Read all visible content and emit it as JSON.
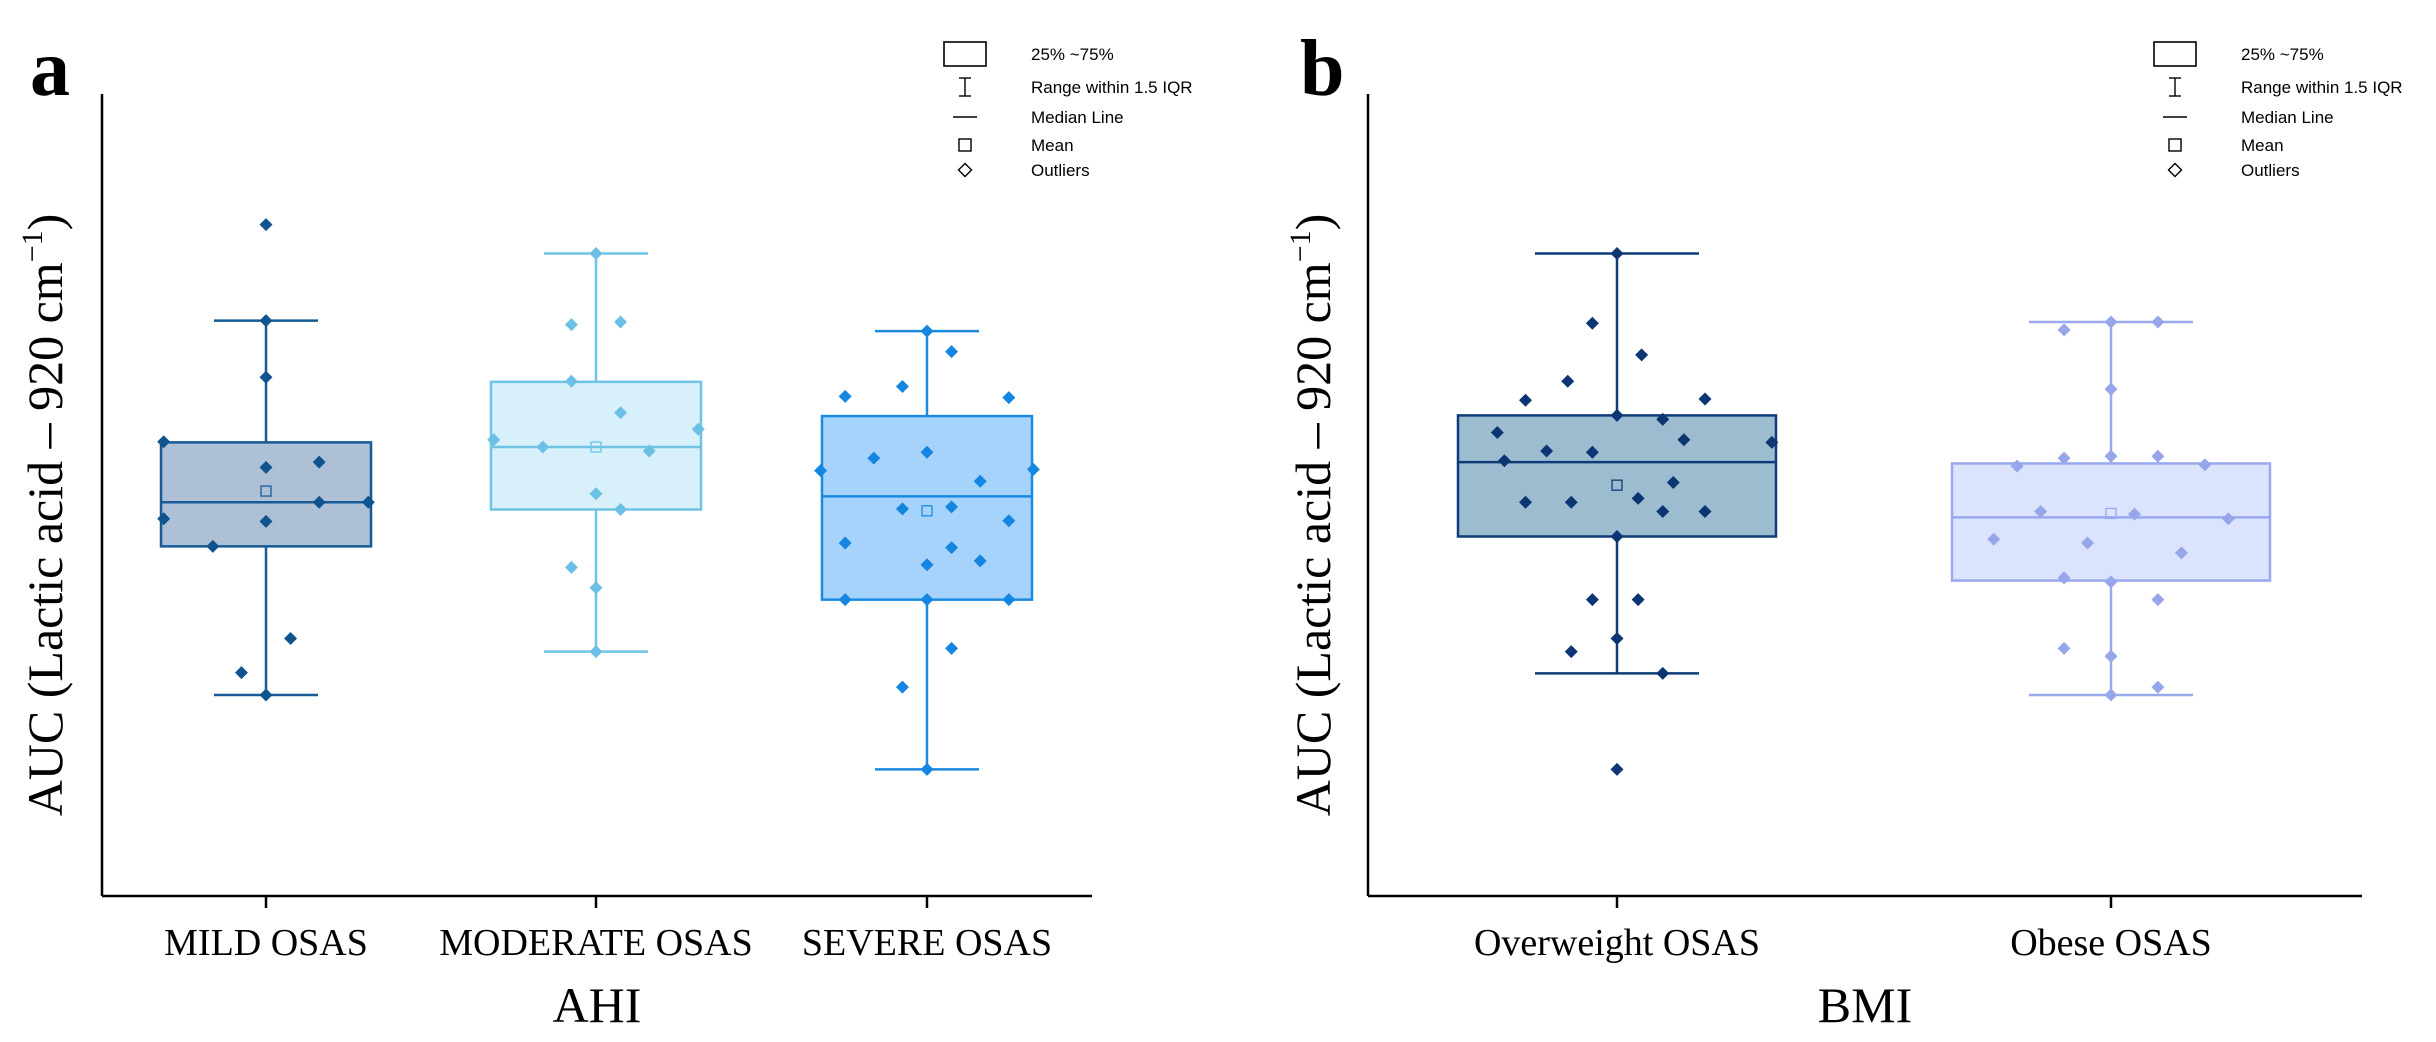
{
  "figure": {
    "panels": [
      {
        "letter": "a",
        "legend": [
          "25% ~75%",
          "Range within 1.5 IQR",
          "Median Line",
          "Mean",
          "Outliers"
        ],
        "chart_data": {
          "type": "box",
          "title": "",
          "xlabel": "AHI",
          "ylabel": "AUC (Lactic acid – 920 cm",
          "ylabel_sup": "−1",
          "ylabel_close": ")",
          "ylim": [
            0,
            100
          ],
          "y_ticks_shown": false,
          "categories": [
            "MILD OSAS",
            "MODERATE OSAS",
            "SEVERE OSAS"
          ],
          "series": [
            {
              "name": "MILD OSAS",
              "box_color": "#aec0d6",
              "line_color": "#165a96",
              "point_color": "#10548f",
              "q1": 42.5,
              "median": 49.2,
              "q3": 58.3,
              "mean": 50.9,
              "whisker_low": 19.9,
              "whisker_high": 76.8,
              "points": [
                {
                  "x": 0,
                  "y": 91.4
                },
                {
                  "x": 0,
                  "y": 76.8
                },
                {
                  "x": 0,
                  "y": 68.2
                },
                {
                  "x": -0.25,
                  "y": 58.4
                },
                {
                  "x": 0,
                  "y": 54.5
                },
                {
                  "x": 0.13,
                  "y": 55.3
                },
                {
                  "x": -0.25,
                  "y": 46.7
                },
                {
                  "x": 0,
                  "y": 46.3
                },
                {
                  "x": 0.13,
                  "y": 49.2
                },
                {
                  "x": 0.25,
                  "y": 49.2
                },
                {
                  "x": -0.13,
                  "y": 42.5
                },
                {
                  "x": 0.06,
                  "y": 28.5
                },
                {
                  "x": -0.06,
                  "y": 23.3
                },
                {
                  "x": 0,
                  "y": 19.9
                }
              ]
            },
            {
              "name": "MODERATE OSAS",
              "box_color": "#d8f0fa",
              "line_color": "#6fc4e6",
              "point_color": "#6cc0e5",
              "q1": 48.1,
              "median": 57.6,
              "q3": 67.5,
              "mean": 57.6,
              "whisker_low": 26.5,
              "whisker_high": 87.0,
              "points": [
                {
                  "x": 0,
                  "y": 87.0
                },
                {
                  "x": -0.06,
                  "y": 76.2
                },
                {
                  "x": 0.06,
                  "y": 76.6
                },
                {
                  "x": -0.06,
                  "y": 67.6
                },
                {
                  "x": 0.06,
                  "y": 62.8
                },
                {
                  "x": 0.25,
                  "y": 60.3
                },
                {
                  "x": -0.25,
                  "y": 58.7
                },
                {
                  "x": -0.13,
                  "y": 57.6
                },
                {
                  "x": 0.13,
                  "y": 57.0
                },
                {
                  "x": 0,
                  "y": 50.5
                },
                {
                  "x": 0.06,
                  "y": 48.1
                },
                {
                  "x": -0.06,
                  "y": 39.3
                },
                {
                  "x": 0,
                  "y": 36.2
                },
                {
                  "x": 0,
                  "y": 26.5
                }
              ]
            },
            {
              "name": "SEVERE OSAS",
              "box_color": "#a6d3fc",
              "line_color": "#1a8ae0",
              "point_color": "#1486e2",
              "q1": 34.4,
              "median": 50.1,
              "q3": 62.3,
              "mean": 47.9,
              "whisker_low": 8.6,
              "whisker_high": 75.2,
              "points": [
                {
                  "x": 0,
                  "y": 75.2
                },
                {
                  "x": 0.06,
                  "y": 72.1
                },
                {
                  "x": -0.06,
                  "y": 66.8
                },
                {
                  "x": -0.2,
                  "y": 65.3
                },
                {
                  "x": 0.2,
                  "y": 65.1
                },
                {
                  "x": -0.13,
                  "y": 55.9
                },
                {
                  "x": 0,
                  "y": 56.8
                },
                {
                  "x": -0.26,
                  "y": 54.0
                },
                {
                  "x": 0.26,
                  "y": 54.2
                },
                {
                  "x": 0.13,
                  "y": 52.4
                },
                {
                  "x": -0.06,
                  "y": 48.2
                },
                {
                  "x": 0.06,
                  "y": 48.5
                },
                {
                  "x": 0.2,
                  "y": 46.4
                },
                {
                  "x": -0.2,
                  "y": 43.0
                },
                {
                  "x": 0.06,
                  "y": 42.3
                },
                {
                  "x": 0,
                  "y": 39.7
                },
                {
                  "x": 0.13,
                  "y": 40.3
                },
                {
                  "x": -0.2,
                  "y": 34.4
                },
                {
                  "x": 0,
                  "y": 34.4
                },
                {
                  "x": 0.2,
                  "y": 34.4
                },
                {
                  "x": 0.06,
                  "y": 27.0
                },
                {
                  "x": -0.06,
                  "y": 21.1
                },
                {
                  "x": 0,
                  "y": 8.6
                }
              ]
            }
          ]
        }
      },
      {
        "letter": "b",
        "legend": [
          "25% ~75%",
          "Range within 1.5 IQR",
          "Median Line",
          "Mean",
          "Outliers"
        ],
        "chart_data": {
          "type": "box",
          "title": "",
          "xlabel": "BMI",
          "ylabel": "AUC (Lactic acid – 920 cm",
          "ylabel_sup": "−1",
          "ylabel_close": ")",
          "ylim": [
            0,
            100
          ],
          "y_ticks_shown": false,
          "categories": [
            "Overweight OSAS",
            "Obese OSAS"
          ],
          "series": [
            {
              "name": "Overweight OSAS",
              "box_color": "#9ebcd0",
              "line_color": "#0d3c78",
              "point_color": "#0b3673",
              "q1": 44.0,
              "median": 55.3,
              "q3": 62.4,
              "mean": 51.8,
              "whisker_low": 23.2,
              "whisker_high": 87.0,
              "points": [
                {
                  "x": 0,
                  "y": 87.0
                },
                {
                  "x": -0.07,
                  "y": 76.4
                },
                {
                  "x": 0.07,
                  "y": 71.6
                },
                {
                  "x": -0.14,
                  "y": 67.6
                },
                {
                  "x": -0.26,
                  "y": 64.7
                },
                {
                  "x": 0.25,
                  "y": 64.9
                },
                {
                  "x": 0,
                  "y": 62.4
                },
                {
                  "x": 0.13,
                  "y": 61.8
                },
                {
                  "x": -0.34,
                  "y": 59.8
                },
                {
                  "x": 0.19,
                  "y": 58.7
                },
                {
                  "x": 0.44,
                  "y": 58.3
                },
                {
                  "x": -0.2,
                  "y": 57.0
                },
                {
                  "x": -0.07,
                  "y": 56.8
                },
                {
                  "x": -0.32,
                  "y": 55.5
                },
                {
                  "x": 0.16,
                  "y": 52.2
                },
                {
                  "x": -0.26,
                  "y": 49.2
                },
                {
                  "x": -0.13,
                  "y": 49.2
                },
                {
                  "x": 0.06,
                  "y": 49.8
                },
                {
                  "x": 0.13,
                  "y": 47.8
                },
                {
                  "x": 0.25,
                  "y": 47.8
                },
                {
                  "x": 0,
                  "y": 44.0
                },
                {
                  "x": -0.07,
                  "y": 34.4
                },
                {
                  "x": 0.06,
                  "y": 34.4
                },
                {
                  "x": 0,
                  "y": 28.5
                },
                {
                  "x": -0.13,
                  "y": 26.5
                },
                {
                  "x": 0.13,
                  "y": 23.2
                },
                {
                  "x": 0,
                  "y": 8.6
                }
              ]
            },
            {
              "name": "Obese OSAS",
              "box_color": "#dbe3fd",
              "line_color": "#9aa9ee",
              "point_color": "#97a6ea",
              "q1": 37.3,
              "median": 46.9,
              "q3": 55.1,
              "mean": 47.5,
              "whisker_low": 19.9,
              "whisker_high": 76.6,
              "points": [
                {
                  "x": -0.1,
                  "y": 75.4
                },
                {
                  "x": 0.1,
                  "y": 76.6
                },
                {
                  "x": 0,
                  "y": 76.6
                },
                {
                  "x": 0,
                  "y": 66.4
                },
                {
                  "x": -0.1,
                  "y": 55.9
                },
                {
                  "x": 0,
                  "y": 56.2
                },
                {
                  "x": 0.1,
                  "y": 56.2
                },
                {
                  "x": -0.2,
                  "y": 54.7
                },
                {
                  "x": 0.2,
                  "y": 54.9
                },
                {
                  "x": -0.15,
                  "y": 47.8
                },
                {
                  "x": 0.05,
                  "y": 47.4
                },
                {
                  "x": 0.25,
                  "y": 46.7
                },
                {
                  "x": -0.25,
                  "y": 43.6
                },
                {
                  "x": -0.05,
                  "y": 43.0
                },
                {
                  "x": 0.15,
                  "y": 41.5
                },
                {
                  "x": -0.1,
                  "y": 37.7
                },
                {
                  "x": 0,
                  "y": 37.1
                },
                {
                  "x": 0.1,
                  "y": 34.4
                },
                {
                  "x": -0.1,
                  "y": 27.0
                },
                {
                  "x": 0,
                  "y": 25.8
                },
                {
                  "x": 0.1,
                  "y": 21.1
                },
                {
                  "x": 0,
                  "y": 19.9
                }
              ]
            }
          ]
        }
      }
    ]
  }
}
